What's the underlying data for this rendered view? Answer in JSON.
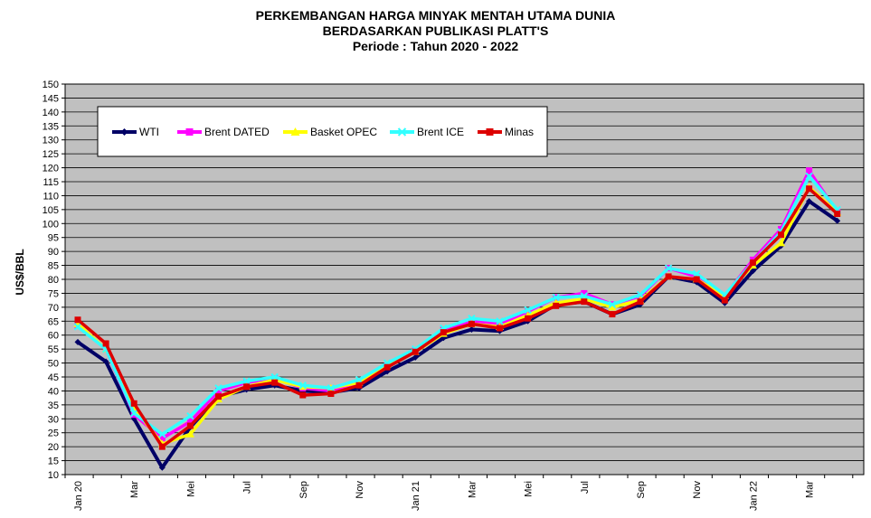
{
  "chart_data": {
    "type": "line",
    "title_lines": [
      "PERKEMBANGAN HARGA MINYAK MENTAH UTAMA DUNIA",
      "BERDASARKAN PUBLIKASI PLATT'S",
      "Periode :  Tahun 2020 - 2022"
    ],
    "ylabel": "US$/BBL",
    "xlabel": "",
    "ylim": [
      10,
      150
    ],
    "y_ticks": [
      10,
      15,
      20,
      25,
      30,
      35,
      40,
      45,
      50,
      55,
      60,
      65,
      70,
      75,
      80,
      85,
      90,
      95,
      100,
      105,
      110,
      115,
      120,
      125,
      130,
      135,
      140,
      145,
      150
    ],
    "grid": true,
    "legend_position": "top-left",
    "x_labels": [
      "Jan 20",
      "Mar",
      "Mei",
      "Jul",
      "Sep",
      "Nov",
      "Jan 21",
      "Mar",
      "Mei",
      "Jul",
      "Sep",
      "Nov",
      "Jan 22",
      "Mar"
    ],
    "x_label_every": 2,
    "n_points": 28,
    "series": [
      {
        "name": "WTI",
        "color": "#000066",
        "marker": "diamond",
        "values": [
          57.5,
          50.5,
          30,
          12.5,
          27,
          38,
          40.5,
          42,
          40,
          39.5,
          41,
          47,
          52,
          59,
          62,
          61.5,
          65,
          71,
          72,
          67.5,
          71,
          81,
          79,
          71.5,
          83,
          92,
          108,
          101
        ]
      },
      {
        "name": "Brent DATED",
        "color": "#ff00ff",
        "marker": "square",
        "values": [
          63.5,
          55,
          31.5,
          23,
          29,
          40,
          43,
          44.5,
          41,
          40,
          43,
          49,
          54.5,
          62,
          65,
          64,
          68.5,
          73.5,
          75,
          71,
          74,
          84,
          81,
          74,
          87,
          98,
          119,
          104
        ]
      },
      {
        "name": "Basket OPEC",
        "color": "#ffff00",
        "marker": "triangle",
        "values": [
          64,
          55,
          34,
          21,
          24.5,
          37,
          41.5,
          44,
          41.5,
          41,
          43,
          49.5,
          54,
          60.5,
          64,
          63,
          67,
          71.5,
          73,
          70,
          72.5,
          81,
          80,
          74,
          85,
          93,
          113,
          104
        ]
      },
      {
        "name": "Brent ICE",
        "color": "#33ffff",
        "marker": "x",
        "values": [
          63,
          55,
          32,
          24.5,
          31,
          41,
          43.5,
          45,
          42,
          41,
          44,
          50,
          55,
          62.5,
          66,
          65,
          69,
          73.5,
          74,
          71,
          74.5,
          84,
          82,
          74.5,
          86,
          97,
          117,
          105
        ]
      },
      {
        "name": "Minas",
        "color": "#dd0000",
        "marker": "square",
        "values": [
          65.5,
          57,
          35.5,
          20,
          27.5,
          38,
          41.5,
          43,
          38.5,
          39,
          42,
          48.5,
          54,
          61,
          64,
          62.5,
          66,
          70.5,
          72,
          67.5,
          72,
          81,
          80,
          72.5,
          86,
          96,
          112.5,
          103.5
        ]
      }
    ]
  }
}
